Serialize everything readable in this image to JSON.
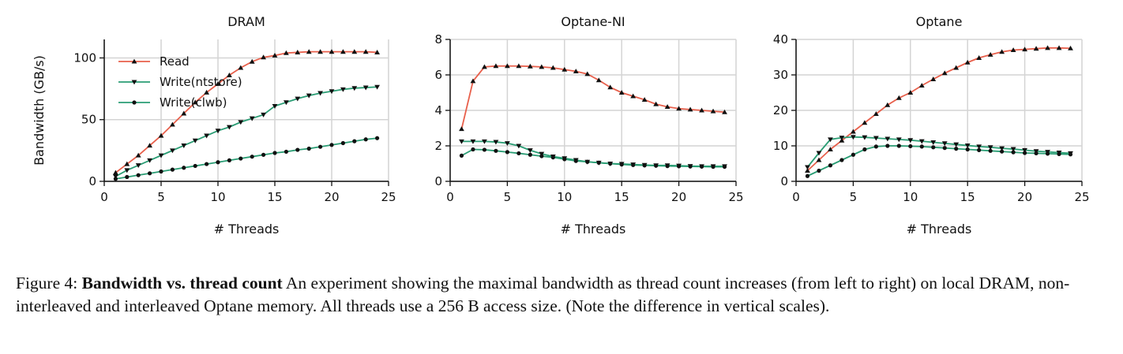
{
  "chart_data": [
    {
      "type": "line",
      "title": "DRAM",
      "xlabel": "# Threads",
      "ylabel": "Bandwidth (GB/s)",
      "xlim": [
        0,
        25
      ],
      "ylim": [
        0,
        115
      ],
      "xticks": [
        0,
        5,
        10,
        15,
        20,
        25
      ],
      "yticks": [
        0,
        50,
        100
      ],
      "grid": true,
      "legend": "top-left",
      "x": [
        1,
        2,
        3,
        4,
        5,
        6,
        7,
        8,
        9,
        10,
        11,
        12,
        13,
        14,
        15,
        16,
        17,
        18,
        19,
        20,
        21,
        22,
        23,
        24
      ],
      "series": [
        {
          "name": "Read",
          "marker": "triangle-up",
          "color": "#e8604c",
          "values": [
            7,
            14,
            21,
            29,
            37,
            46,
            55,
            64,
            72,
            79,
            86,
            92,
            97,
            100.5,
            102,
            104,
            104.5,
            105,
            105,
            105,
            105,
            105,
            105,
            104.5
          ]
        },
        {
          "name": "Write(ntstore)",
          "marker": "triangle-down",
          "color": "#2a9d74",
          "values": [
            4,
            9,
            13,
            17,
            21,
            25,
            29,
            33,
            37,
            41,
            44,
            48,
            51,
            54,
            61,
            64,
            67,
            69.5,
            71.5,
            73,
            74.5,
            75.5,
            76,
            76.5
          ]
        },
        {
          "name": "Write(clwb)",
          "marker": "circle",
          "color": "#2a9d74",
          "values": [
            2,
            3.5,
            5,
            6.5,
            8,
            9.5,
            11,
            12.5,
            14,
            15.5,
            17,
            18.5,
            20,
            21.5,
            23,
            24,
            25.5,
            26.5,
            28,
            29.5,
            31,
            32.5,
            34,
            35
          ]
        }
      ]
    },
    {
      "type": "line",
      "title": "Optane-NI",
      "xlabel": "# Threads",
      "ylabel": "",
      "xlim": [
        0,
        25
      ],
      "ylim": [
        0,
        8
      ],
      "xticks": [
        0,
        5,
        10,
        15,
        20,
        25
      ],
      "yticks": [
        0,
        2,
        4,
        6,
        8
      ],
      "grid": true,
      "x": [
        1,
        2,
        3,
        4,
        5,
        6,
        7,
        8,
        9,
        10,
        11,
        12,
        13,
        14,
        15,
        16,
        17,
        18,
        19,
        20,
        21,
        22,
        23,
        24
      ],
      "series": [
        {
          "name": "Read",
          "marker": "triangle-up",
          "color": "#e8604c",
          "values": [
            2.95,
            5.65,
            6.45,
            6.5,
            6.5,
            6.5,
            6.48,
            6.45,
            6.4,
            6.3,
            6.2,
            6.05,
            5.7,
            5.3,
            5.0,
            4.8,
            4.6,
            4.35,
            4.2,
            4.1,
            4.05,
            4.0,
            3.95,
            3.9
          ]
        },
        {
          "name": "Write(ntstore)",
          "marker": "triangle-down",
          "color": "#2a9d74",
          "values": [
            2.25,
            2.25,
            2.25,
            2.22,
            2.15,
            2.0,
            1.75,
            1.55,
            1.4,
            1.3,
            1.2,
            1.1,
            1.05,
            1.0,
            0.98,
            0.95,
            0.92,
            0.9,
            0.9,
            0.88,
            0.86,
            0.85,
            0.85,
            0.85
          ]
        },
        {
          "name": "Write(clwb)",
          "marker": "circle",
          "color": "#2a9d74",
          "values": [
            1.45,
            1.8,
            1.78,
            1.72,
            1.65,
            1.58,
            1.5,
            1.42,
            1.35,
            1.25,
            1.15,
            1.1,
            1.05,
            1.0,
            0.95,
            0.92,
            0.9,
            0.88,
            0.86,
            0.85,
            0.84,
            0.83,
            0.82,
            0.82
          ]
        }
      ]
    },
    {
      "type": "line",
      "title": "Optane",
      "xlabel": "# Threads",
      "ylabel": "",
      "xlim": [
        0,
        25
      ],
      "ylim": [
        0,
        40
      ],
      "xticks": [
        0,
        5,
        10,
        15,
        20,
        25
      ],
      "yticks": [
        0,
        10,
        20,
        30,
        40
      ],
      "grid": true,
      "x": [
        1,
        2,
        3,
        4,
        5,
        6,
        7,
        8,
        9,
        10,
        11,
        12,
        13,
        14,
        15,
        16,
        17,
        18,
        19,
        20,
        21,
        22,
        23,
        24
      ],
      "series": [
        {
          "name": "Read",
          "marker": "triangle-up",
          "color": "#e8604c",
          "values": [
            3,
            6,
            9,
            11.5,
            14,
            16.5,
            19,
            21.5,
            23.5,
            25,
            27,
            28.8,
            30.5,
            32,
            33.5,
            34.8,
            35.7,
            36.5,
            37,
            37.2,
            37.4,
            37.6,
            37.6,
            37.5
          ]
        },
        {
          "name": "Write(ntstore)",
          "marker": "triangle-down",
          "color": "#2a9d74",
          "values": [
            4,
            8,
            11.8,
            12.3,
            12.5,
            12.4,
            12.2,
            12,
            11.8,
            11.6,
            11.3,
            11,
            10.7,
            10.4,
            10.1,
            9.8,
            9.6,
            9.3,
            9.1,
            8.8,
            8.5,
            8.3,
            8.1,
            7.9
          ]
        },
        {
          "name": "Write(clwb)",
          "marker": "circle",
          "color": "#2a9d74",
          "values": [
            1.5,
            3,
            4.5,
            6,
            7.5,
            9,
            9.8,
            10,
            10,
            9.9,
            9.8,
            9.6,
            9.4,
            9.2,
            9,
            8.8,
            8.6,
            8.4,
            8.2,
            8,
            7.9,
            7.8,
            7.7,
            7.6
          ]
        }
      ]
    }
  ],
  "caption": {
    "label": "Figure 4:",
    "bold_title": "Bandwidth vs. thread count",
    "text": "An experiment showing the maximal bandwidth as thread count increases (from left to right) on local DRAM, non-interleaved and interleaved Optane memory. All threads use a 256 B access size. (Note the difference in vertical scales)."
  }
}
